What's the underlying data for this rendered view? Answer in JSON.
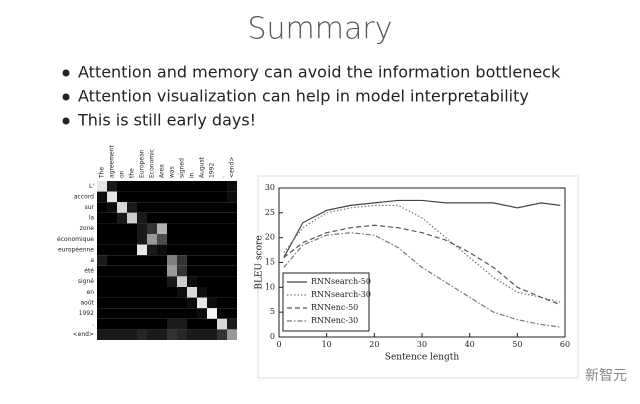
{
  "title": "Summary",
  "bullets": [
    "Attention and memory can avoid the information bottleneck",
    "Attention visualization can help in model interpretability",
    "This is still early days!"
  ],
  "watermark": "新智元",
  "chart_data": [
    {
      "type": "heatmap",
      "x": [
        "The",
        "agreement",
        "on",
        "the",
        "European",
        "Economic",
        "Area",
        "was",
        "signed",
        "in",
        "August",
        "1992",
        ".",
        "<end>"
      ],
      "categories": [
        "L'",
        "accord",
        "sur",
        "la",
        "zone",
        "économique",
        "européenne",
        "a",
        "été",
        "signé",
        "en",
        "août",
        "1992",
        ".",
        "<end>"
      ],
      "values": [
        [
          0.9,
          0.1,
          0,
          0,
          0,
          0,
          0,
          0,
          0,
          0,
          0,
          0,
          0,
          0.05
        ],
        [
          0.05,
          0.9,
          0,
          0,
          0,
          0,
          0,
          0,
          0,
          0,
          0,
          0,
          0,
          0.05
        ],
        [
          0,
          0.05,
          0.85,
          0.1,
          0,
          0,
          0,
          0,
          0,
          0,
          0,
          0,
          0,
          0
        ],
        [
          0,
          0,
          0.1,
          0.8,
          0.1,
          0,
          0,
          0,
          0,
          0,
          0,
          0,
          0,
          0
        ],
        [
          0,
          0,
          0,
          0,
          0.1,
          0.2,
          0.7,
          0,
          0,
          0,
          0,
          0,
          0,
          0
        ],
        [
          0,
          0,
          0,
          0,
          0.1,
          0.6,
          0.3,
          0,
          0,
          0,
          0,
          0,
          0,
          0
        ],
        [
          0,
          0,
          0,
          0,
          0.9,
          0.1,
          0.05,
          0,
          0,
          0,
          0,
          0,
          0,
          0
        ],
        [
          0.1,
          0,
          0,
          0,
          0,
          0,
          0,
          0.5,
          0.2,
          0,
          0,
          0,
          0,
          0
        ],
        [
          0,
          0,
          0,
          0,
          0,
          0,
          0,
          0.6,
          0.2,
          0,
          0,
          0,
          0,
          0
        ],
        [
          0,
          0,
          0,
          0,
          0,
          0,
          0,
          0.1,
          0.8,
          0.05,
          0,
          0,
          0,
          0
        ],
        [
          0,
          0,
          0,
          0,
          0,
          0,
          0,
          0,
          0.05,
          0.85,
          0.05,
          0,
          0,
          0
        ],
        [
          0,
          0,
          0,
          0,
          0,
          0,
          0,
          0,
          0,
          0.05,
          0.9,
          0.05,
          0,
          0
        ],
        [
          0,
          0,
          0,
          0,
          0,
          0,
          0,
          0,
          0,
          0,
          0.05,
          0.95,
          0,
          0
        ],
        [
          0,
          0,
          0,
          0,
          0,
          0,
          0,
          0.1,
          0.1,
          0,
          0,
          0,
          0.85,
          0.1
        ],
        [
          0.1,
          0.1,
          0.1,
          0.1,
          0.15,
          0.1,
          0.1,
          0.2,
          0.15,
          0.1,
          0.1,
          0.1,
          0.2,
          0.6
        ]
      ]
    },
    {
      "type": "line",
      "xlabel": "Sentence length",
      "ylabel": "BLEU score",
      "x": [
        1,
        5,
        10,
        15,
        20,
        25,
        30,
        35,
        40,
        45,
        50,
        55,
        59
      ],
      "xlim": [
        0,
        60
      ],
      "xticks": [
        0,
        10,
        20,
        30,
        40,
        50,
        60
      ],
      "ylim": [
        0,
        30
      ],
      "yticks": [
        0,
        5,
        10,
        15,
        20,
        25,
        30
      ],
      "legend": "lower-left",
      "series": [
        {
          "name": "RNNsearch-50",
          "color": "#444444",
          "dash": "solid",
          "values": [
            16,
            23,
            25.5,
            26.5,
            27,
            27.5,
            27.5,
            27,
            27,
            27,
            26,
            27,
            26.5
          ]
        },
        {
          "name": "RNNsearch-30",
          "color": "#777777",
          "dash": "dotted",
          "values": [
            17,
            22,
            25,
            26,
            26.5,
            26.5,
            24,
            20,
            16,
            12,
            9,
            8,
            7
          ]
        },
        {
          "name": "RNNenc-50",
          "color": "#555555",
          "dash": "dashed",
          "values": [
            16,
            19,
            21,
            22,
            22.5,
            22,
            21,
            19.5,
            17,
            14,
            10,
            8,
            6.5
          ]
        },
        {
          "name": "RNNenc-30",
          "color": "#777777",
          "dash": "dashdot",
          "values": [
            14,
            18.5,
            20.5,
            21,
            20.5,
            18,
            14,
            11,
            8,
            5,
            3.5,
            2.5,
            2
          ]
        }
      ]
    }
  ]
}
